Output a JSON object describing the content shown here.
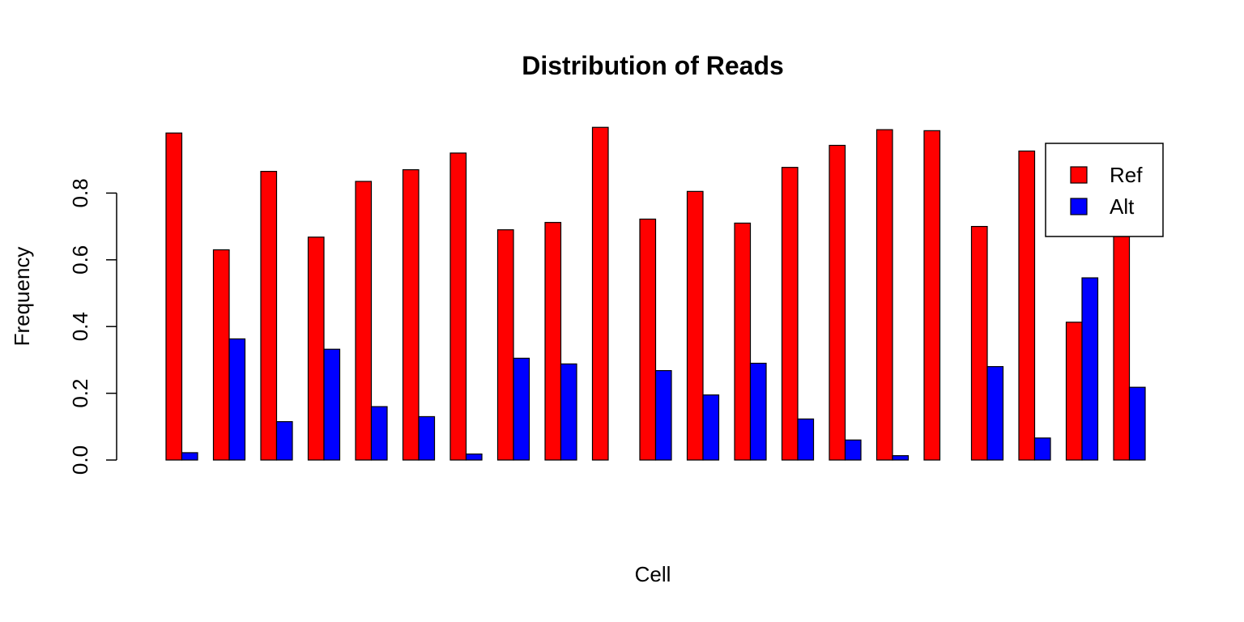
{
  "chart_data": {
    "type": "bar",
    "title": "Distribution of Reads",
    "xlabel": "Cell",
    "ylabel": "Frequency",
    "ylim": [
      0,
      1.0
    ],
    "yticks": [
      "0.0",
      "0.2",
      "0.4",
      "0.6",
      "0.8"
    ],
    "grid": false,
    "legend_position": "top-right",
    "series": [
      {
        "name": "Ref",
        "color": "#ff0000",
        "values": [
          0.98,
          0.63,
          0.865,
          0.668,
          0.835,
          0.87,
          0.92,
          0.69,
          0.712,
          0.997,
          0.722,
          0.805,
          0.71,
          0.877,
          0.943,
          0.99,
          0.987,
          0.7,
          0.926,
          0.413,
          0.78
        ]
      },
      {
        "name": "Alt",
        "color": "#0000ff",
        "values": [
          0.022,
          0.363,
          0.115,
          0.332,
          0.16,
          0.13,
          0.018,
          0.305,
          0.288,
          0.0,
          0.268,
          0.195,
          0.29,
          0.123,
          0.06,
          0.013,
          0.0,
          0.28,
          0.066,
          0.546,
          0.218
        ]
      }
    ]
  }
}
